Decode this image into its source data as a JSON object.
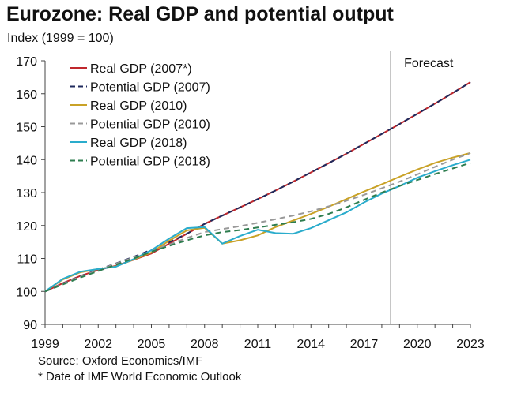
{
  "chart_data": {
    "type": "line",
    "title": "Eurozone: Real GDP and potential output",
    "ylabel": "Index (1999 = 100)",
    "xlabel": "",
    "xlim": [
      1999,
      2023
    ],
    "ylim": [
      90,
      170
    ],
    "yticks": [
      90,
      100,
      110,
      120,
      130,
      140,
      150,
      160,
      170
    ],
    "xticks": [
      1999,
      2002,
      2005,
      2008,
      2011,
      2014,
      2017,
      2020,
      2023
    ],
    "annotation": {
      "label": "Forecast",
      "x": 2018.5
    },
    "legend_position": "top-left",
    "x": [
      1999,
      2000,
      2001,
      2002,
      2003,
      2004,
      2005,
      2006,
      2007,
      2008,
      2009,
      2010,
      2011,
      2012,
      2013,
      2014,
      2015,
      2016,
      2017,
      2018,
      2019,
      2020,
      2021,
      2022,
      2023
    ],
    "series": [
      {
        "name": "Real GDP (2007*)",
        "color": "#c0282d",
        "dash": false,
        "values": [
          100,
          102.5,
          104.7,
          106.5,
          107.8,
          109.6,
          111.5,
          114.5,
          117.5,
          120.5,
          123.0,
          125.5,
          128.0,
          130.6,
          133.3,
          136.1,
          138.9,
          141.8,
          144.8,
          147.8,
          150.8,
          153.9,
          157.0,
          160.2,
          163.5
        ]
      },
      {
        "name": "Potential GDP (2007)",
        "color": "#1f2a5c",
        "dash": true,
        "values": [
          100,
          102.4,
          104.6,
          106.6,
          108.5,
          110.5,
          112.6,
          114.9,
          117.5,
          120.5,
          123.0,
          125.5,
          128.0,
          130.6,
          133.3,
          136.1,
          138.9,
          141.8,
          144.8,
          147.8,
          150.8,
          153.9,
          157.0,
          160.2,
          163.5
        ]
      },
      {
        "name": "Real GDP (2010)",
        "color": "#c9a227",
        "dash": false,
        "values": [
          100,
          103.6,
          105.8,
          106.8,
          107.6,
          109.7,
          111.8,
          115.4,
          118.5,
          119.3,
          114.5,
          115.5,
          117.0,
          119.5,
          121.5,
          123.5,
          125.7,
          128.0,
          130.3,
          132.5,
          134.8,
          137.0,
          139.0,
          140.6,
          142.0
        ]
      },
      {
        "name": "Potential GDP (2010)",
        "color": "#999999",
        "dash": true,
        "values": [
          100,
          102.3,
          104.5,
          106.5,
          108.4,
          110.3,
          112.2,
          114.2,
          116.2,
          118.0,
          118.9,
          119.8,
          120.8,
          121.9,
          123.0,
          124.3,
          125.8,
          127.5,
          129.3,
          131.3,
          133.3,
          135.5,
          137.8,
          140.0,
          142.0
        ]
      },
      {
        "name": "Real GDP (2018)",
        "color": "#2aaccc",
        "dash": false,
        "values": [
          100,
          103.8,
          106.0,
          106.8,
          107.5,
          109.8,
          112.5,
          116.0,
          119.2,
          119.5,
          114.5,
          116.8,
          118.7,
          117.7,
          117.5,
          119.2,
          121.6,
          124.0,
          127.0,
          129.7,
          132.0,
          134.5,
          136.5,
          138.3,
          140.0
        ]
      },
      {
        "name": "Potential GDP (2018)",
        "color": "#2e7d4f",
        "dash": true,
        "values": [
          100,
          102.1,
          104.2,
          106.2,
          108.1,
          110.0,
          112.0,
          113.8,
          115.5,
          117.0,
          118.0,
          118.6,
          119.4,
          120.2,
          121.0,
          122.0,
          123.5,
          125.5,
          127.8,
          130.0,
          132.0,
          133.8,
          135.6,
          137.3,
          139.0
        ]
      }
    ]
  },
  "source": "Source: Oxford Economics/IMF",
  "footnote": "* Date of IMF World Economic Outlook"
}
